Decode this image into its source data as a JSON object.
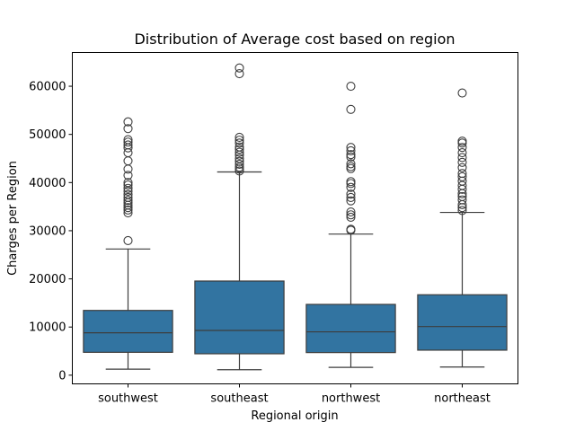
{
  "chart_data": {
    "type": "box",
    "title": "Distribution of Average cost based on region",
    "xlabel": "Regional origin",
    "ylabel": "Charges per Region",
    "ylim": [
      -1800,
      67000
    ],
    "yticks": [
      0,
      10000,
      20000,
      30000,
      40000,
      50000,
      60000
    ],
    "ytick_labels": [
      "0",
      "10000",
      "20000",
      "30000",
      "40000",
      "50000",
      "60000"
    ],
    "grid": false,
    "colors": {
      "box": "#3274a1",
      "line": "#3d3d3d"
    },
    "categories": [
      "southwest",
      "southeast",
      "northwest",
      "northeast"
    ],
    "boxes": [
      {
        "category": "southwest",
        "whisker_low": 1250,
        "q1": 4750,
        "median": 8800,
        "q3": 13450,
        "whisker_high": 26200,
        "outliers": [
          27950,
          33700,
          34300,
          34800,
          35300,
          35800,
          36300,
          36900,
          37500,
          38200,
          38800,
          39500,
          40000,
          41500,
          42800,
          44500,
          46200,
          47200,
          47800,
          48400,
          48900,
          51200,
          52600
        ]
      },
      {
        "category": "southeast",
        "whisker_low": 1130,
        "q1": 4450,
        "median": 9300,
        "q3": 19550,
        "whisker_high": 42200,
        "outliers": [
          42400,
          42800,
          43200,
          43800,
          44400,
          45000,
          45700,
          46300,
          46900,
          47400,
          48200,
          48800,
          49400,
          62600,
          63800
        ]
      },
      {
        "category": "northwest",
        "whisker_low": 1620,
        "q1": 4700,
        "median": 9000,
        "q3": 14700,
        "whisker_high": 29300,
        "outliers": [
          30100,
          30300,
          32800,
          33300,
          33900,
          36200,
          36900,
          37600,
          39000,
          39800,
          40200,
          42900,
          43300,
          43900,
          45300,
          45800,
          46600,
          47300,
          55200,
          60000
        ]
      },
      {
        "category": "northeast",
        "whisker_low": 1700,
        "q1": 5200,
        "median": 10100,
        "q3": 16700,
        "whisker_high": 33800,
        "outliers": [
          34200,
          34800,
          35400,
          36400,
          37100,
          37700,
          38600,
          39400,
          40300,
          41200,
          41900,
          43100,
          44200,
          45200,
          46200,
          47300,
          48200,
          48600,
          58600
        ]
      }
    ]
  }
}
